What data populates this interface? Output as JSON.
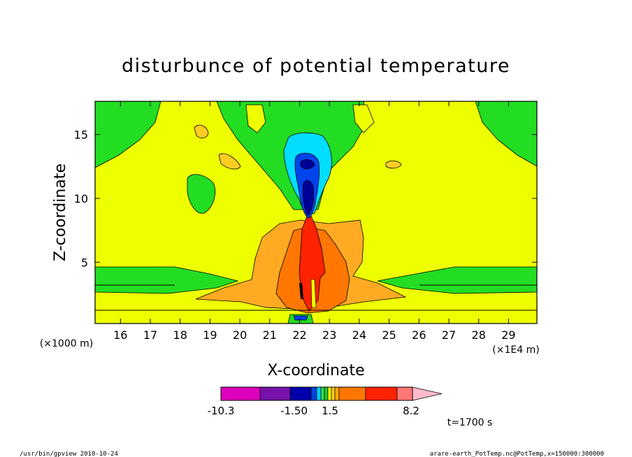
{
  "chart_data": {
    "type": "heatmap",
    "title": "disturbunce of potential temperature",
    "xlabel": "X-coordinate",
    "ylabel": "Z-coordinate",
    "x_unit_left": "(×1000 m)",
    "x_unit_right": "(×1E4 m)",
    "xlim": [
      15.15,
      29.95
    ],
    "ylim": [
      0.2,
      17.6
    ],
    "xticks": [
      "16",
      "17",
      "18",
      "19",
      "20",
      "21",
      "22",
      "23",
      "24",
      "25",
      "26",
      "27",
      "28",
      "29"
    ],
    "yticks": [
      "5",
      "10",
      "15"
    ],
    "colorbar": {
      "colors": [
        "#dd00bb",
        "#7711aa",
        "#0000aa",
        "#0044dd",
        "#00ccff",
        "#33dd55",
        "#22cc22",
        "#eeff00",
        "#ffcc22",
        "#ffaa00",
        "#ff7700",
        "#ff2200",
        "#ff7777",
        "#ffbbcc"
      ],
      "tick_labels": [
        "-10.3",
        "-1.50",
        "1.5",
        "8.2"
      ]
    },
    "time_label": "t=1700 s",
    "regions": [
      {
        "level": "green",
        "color": "#22dd22",
        "desc": "top-left corner"
      },
      {
        "level": "green",
        "color": "#22dd22",
        "desc": "top-right corner"
      },
      {
        "level": "green",
        "color": "#22dd22",
        "desc": "low-level band"
      },
      {
        "level": "yellow",
        "color": "#eeff00",
        "desc": "background near zero"
      },
      {
        "level": "orange",
        "color": "#ffaa22",
        "desc": "plume outer"
      },
      {
        "level": "dark-orange",
        "color": "#ff7700",
        "desc": "plume middle"
      },
      {
        "level": "red",
        "color": "#ff2200",
        "desc": "plume core"
      },
      {
        "level": "cyan",
        "color": "#00ddff",
        "desc": "upper negative anomaly"
      },
      {
        "level": "blue",
        "color": "#0044ee",
        "desc": "upper negative core"
      },
      {
        "level": "navy",
        "color": "#000099",
        "desc": "strongest negative"
      }
    ]
  },
  "footer": {
    "left": "/usr/bin/gpview  2010-10-24",
    "right": "arare-earth_PotTemp.nc@PotTemp,x=150000:300000"
  },
  "colors": {
    "plot_border": "#000000",
    "background": "#ffffff"
  }
}
